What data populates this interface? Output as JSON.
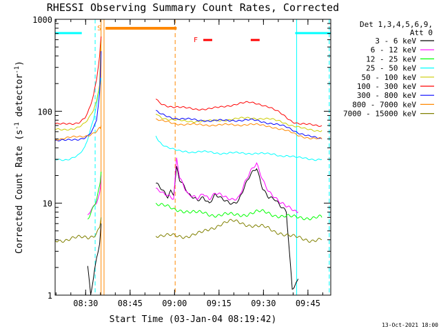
{
  "chart_data": {
    "type": "line",
    "title": "RHESSI Observing Summary Count Rates, Corrected",
    "xlabel": "Start Time (03-Jan-04 08:19:42)",
    "ylabel": "Corrected Count Rate (s",
    "ylabel_sup": "-1",
    "ylabel_mid": " detector",
    "ylabel_sup2": "-1",
    "ylabel_end": ")",
    "yscale": "log",
    "ylim": [
      1,
      1000
    ],
    "yticks": [
      {
        "value": 1,
        "label": "1"
      },
      {
        "value": 10,
        "label": "10"
      },
      {
        "value": 100,
        "label": "100"
      },
      {
        "value": 1000,
        "label": "1000"
      }
    ],
    "xlim_min": [
      0,
      93
    ],
    "xticks": [
      {
        "value": 10.3,
        "label": "08:30"
      },
      {
        "value": 25.3,
        "label": "08:45"
      },
      {
        "value": 40.3,
        "label": "09:00"
      },
      {
        "value": 55.3,
        "label": "09:15"
      },
      {
        "value": 70.3,
        "label": "09:30"
      },
      {
        "value": 85.3,
        "label": "09:45"
      }
    ],
    "legend_header": [
      "Det 1,3,4,5,6,9,",
      "Att 0"
    ],
    "series": [
      {
        "name": "3 - 6 keV",
        "color": "#000000",
        "x": [
          0,
          10,
          11,
          12,
          13,
          14,
          15,
          15.5,
          17,
          32,
          34,
          35,
          36,
          37,
          38,
          39,
          40,
          41,
          42,
          44,
          45,
          48,
          50,
          52,
          54,
          56,
          58,
          60,
          62,
          64,
          66,
          68,
          70,
          72,
          74,
          76,
          78,
          80,
          82,
          84,
          86,
          88,
          90,
          93
        ],
        "y": [
          null,
          null,
          2,
          1,
          1.5,
          2.5,
          3.5,
          6,
          null,
          null,
          16,
          15,
          14,
          13,
          12,
          14,
          13,
          25,
          18,
          14,
          12,
          11,
          12,
          10,
          12,
          11,
          10.5,
          10.2,
          11,
          15,
          20,
          24,
          15,
          12,
          11,
          9,
          8,
          1.2,
          1.5,
          null,
          null,
          null,
          null,
          null
        ]
      },
      {
        "name": "6 - 12 keV",
        "color": "#ff00ff",
        "x": [
          0,
          11,
          12,
          13,
          14,
          15,
          15.5,
          17,
          34,
          35,
          36,
          38,
          40,
          41,
          42,
          44,
          45,
          48,
          50,
          52,
          54,
          56,
          58,
          60,
          62,
          64,
          66,
          68,
          70,
          72,
          74,
          76,
          78,
          80,
          82,
          84,
          93
        ],
        "y": [
          null,
          7.5,
          8.5,
          9,
          10,
          12,
          20,
          null,
          14,
          13.5,
          12.5,
          12,
          11.5,
          32,
          20,
          14,
          12,
          11,
          13,
          11.5,
          13,
          12,
          11,
          11,
          12,
          17,
          22,
          26,
          18,
          14,
          12,
          10,
          9,
          8.5,
          8,
          null,
          null
        ]
      },
      {
        "name": "12 - 25 keV",
        "color": "#00ff00",
        "x": [
          0,
          11,
          12,
          13,
          14,
          15,
          15.5,
          17,
          34,
          36,
          38,
          40,
          42,
          44,
          46,
          48,
          50,
          52,
          54,
          56,
          58,
          60,
          62,
          64,
          66,
          68,
          70,
          72,
          74,
          76,
          78,
          80,
          82,
          84,
          86,
          88,
          90,
          93
        ],
        "y": [
          null,
          7,
          8,
          9.5,
          11,
          15,
          22,
          null,
          10,
          9.5,
          9,
          8.5,
          8.5,
          8.3,
          8,
          7.8,
          7.8,
          7.6,
          7.5,
          7.5,
          7.5,
          7.4,
          7.5,
          7.6,
          7.8,
          8,
          8,
          7.8,
          7.5,
          7.3,
          7.2,
          7,
          7,
          7,
          7,
          7,
          7,
          null
        ]
      },
      {
        "name": "25 - 50 keV",
        "color": "#00ffff",
        "x": [
          0,
          2,
          4,
          6,
          8,
          10,
          11,
          12,
          13,
          14,
          15,
          15.5,
          17,
          34,
          35,
          36,
          38,
          40,
          42,
          44,
          46,
          48,
          50,
          52,
          54,
          56,
          58,
          60,
          62,
          64,
          66,
          68,
          70,
          72,
          74,
          76,
          78,
          80,
          82,
          84,
          86,
          88,
          90,
          93
        ],
        "y": [
          30,
          30,
          30,
          31,
          33,
          40,
          50,
          65,
          85,
          120,
          180,
          230,
          null,
          55,
          48,
          44,
          40,
          38,
          37,
          37,
          36,
          36,
          36,
          36,
          35.5,
          35,
          35,
          35,
          35,
          35,
          35,
          35,
          34.5,
          34,
          34,
          33,
          33,
          32,
          31,
          31,
          30.5,
          30,
          30,
          null
        ]
      },
      {
        "name": "50 - 100 keV",
        "color": "#cccc00",
        "x": [
          0,
          2,
          4,
          6,
          8,
          10,
          11,
          12,
          13,
          14,
          15,
          15.5,
          17,
          34,
          35,
          36,
          38,
          40,
          42,
          44,
          46,
          48,
          50,
          52,
          54,
          56,
          58,
          60,
          62,
          64,
          66,
          68,
          70,
          72,
          74,
          76,
          78,
          80,
          82,
          84,
          86,
          88,
          90,
          93
        ],
        "y": [
          63,
          63,
          64,
          65,
          67,
          73,
          80,
          90,
          105,
          130,
          200,
          600,
          null,
          95,
          90,
          86,
          82,
          80,
          79,
          78,
          78,
          78,
          78,
          78,
          79,
          80,
          81,
          82,
          83,
          84,
          85,
          84,
          83,
          82,
          80,
          78,
          74,
          70,
          67,
          64,
          63,
          62,
          62,
          null
        ]
      },
      {
        "name": "100 - 300 keV",
        "color": "#ff0000",
        "x": [
          0,
          2,
          4,
          6,
          8,
          10,
          11,
          12,
          13,
          14,
          15,
          15.5,
          17,
          34,
          35,
          36,
          38,
          40,
          42,
          44,
          46,
          48,
          50,
          52,
          54,
          56,
          58,
          60,
          62,
          64,
          66,
          68,
          70,
          72,
          74,
          76,
          78,
          80,
          82,
          84,
          86,
          88,
          90,
          93
        ],
        "y": [
          72,
          72,
          73,
          74,
          76,
          84,
          95,
          115,
          150,
          220,
          400,
          650,
          null,
          135,
          125,
          120,
          115,
          112,
          110,
          108,
          107,
          106,
          106,
          106,
          108,
          111,
          115,
          118,
          121,
          123,
          124,
          122,
          118,
          112,
          103,
          95,
          86,
          78,
          74,
          72,
          71,
          70,
          70,
          null
        ]
      },
      {
        "name": "300 - 800 keV",
        "color": "#0000ff",
        "x": [
          0,
          2,
          4,
          6,
          8,
          10,
          11,
          12,
          13,
          14,
          15,
          15.5,
          17,
          34,
          35,
          36,
          38,
          40,
          42,
          44,
          46,
          48,
          50,
          52,
          54,
          56,
          58,
          60,
          62,
          64,
          66,
          68,
          70,
          72,
          74,
          76,
          78,
          80,
          82,
          84,
          86,
          88,
          90,
          93
        ],
        "y": [
          48,
          48,
          48,
          49,
          50,
          52,
          54,
          58,
          65,
          80,
          150,
          450,
          null,
          100,
          95,
          92,
          88,
          85,
          83,
          82,
          81,
          80,
          80,
          79,
          79,
          79,
          79,
          80,
          80,
          80,
          80,
          79,
          77,
          75,
          73,
          70,
          67,
          63,
          59,
          56,
          53,
          51,
          50,
          null
        ]
      },
      {
        "name": "800 - 7000 keV",
        "color": "#ff8800",
        "x": [
          0,
          2,
          4,
          6,
          8,
          10,
          11,
          12,
          13,
          14,
          15,
          15.5,
          17,
          34,
          35,
          36,
          38,
          40,
          42,
          44,
          46,
          48,
          50,
          52,
          54,
          56,
          58,
          60,
          62,
          64,
          66,
          68,
          70,
          72,
          74,
          76,
          78,
          80,
          82,
          84,
          86,
          88,
          90,
          93
        ],
        "y": [
          50,
          50,
          51,
          52,
          53,
          54,
          55,
          56,
          58,
          60,
          65,
          70,
          null,
          82,
          80,
          78,
          76,
          74,
          73,
          72,
          72,
          71,
          71,
          71,
          71,
          71,
          71,
          71,
          71,
          72,
          72,
          71,
          70,
          69,
          67,
          64,
          61,
          58,
          55,
          53,
          51,
          50,
          50,
          null
        ]
      },
      {
        "name": "7000 - 15000 keV",
        "color": "#808000",
        "x": [
          0,
          2,
          4,
          6,
          8,
          10,
          11,
          12,
          13,
          14,
          15,
          15.5,
          17,
          34,
          35,
          36,
          38,
          40,
          42,
          44,
          46,
          48,
          50,
          52,
          54,
          56,
          58,
          60,
          62,
          64,
          66,
          68,
          70,
          72,
          74,
          76,
          78,
          80,
          82,
          84,
          86,
          88,
          90,
          93
        ],
        "y": [
          4,
          4,
          4,
          4.1,
          4.2,
          4.3,
          4.3,
          4.4,
          4.5,
          4.8,
          5.5,
          7,
          null,
          4.5,
          4.5,
          4.4,
          4.4,
          4.4,
          4.4,
          4.4,
          4.5,
          4.6,
          4.8,
          5.2,
          5.6,
          6,
          6.2,
          6.3,
          6.2,
          6,
          5.8,
          5.6,
          5.5,
          5.3,
          5,
          4.8,
          4.5,
          4.3,
          4.2,
          4.1,
          4,
          4,
          4,
          null
        ]
      }
    ],
    "flags": {
      "saa_label": "S",
      "flare_label": "F",
      "flare_intervals": [
        [
          50,
          53
        ],
        [
          66,
          69
        ]
      ],
      "night_intervals": [
        [
          0,
          9
        ],
        [
          81,
          93
        ]
      ],
      "saa_interval": [
        17,
        41
      ],
      "vlines_cyan_solid": [
        0,
        81.5
      ],
      "vlines_cyan_dashed": [
        13.5,
        92.5
      ],
      "vlines_orange_solid": [
        15.5,
        16.5
      ],
      "vlines_orange_dashed": [
        40.5
      ]
    },
    "footer_date": "13-Oct-2021 18:00"
  }
}
